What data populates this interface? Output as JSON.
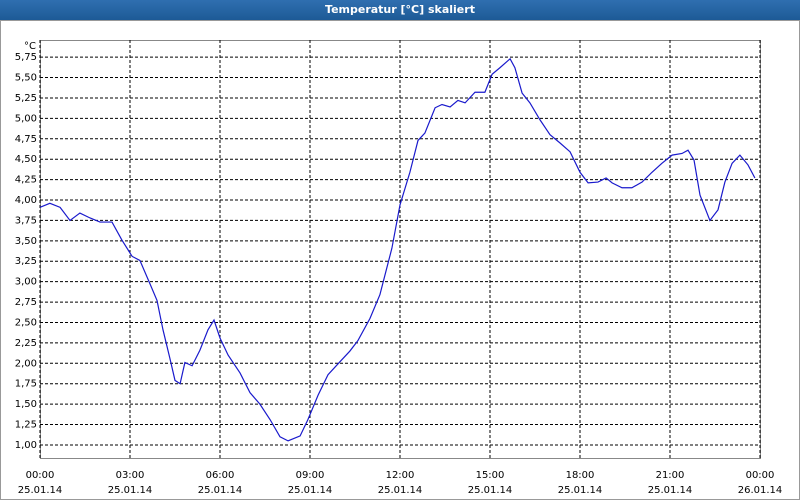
{
  "chart_data": {
    "type": "line",
    "title": "Temperatur [°C] skaliert",
    "y_unit": "°C",
    "xlim": [
      0,
      24
    ],
    "xticks": [
      {
        "value": 0,
        "label": "00:00"
      },
      {
        "value": 3,
        "label": "03:00"
      },
      {
        "value": 6,
        "label": "06:00"
      },
      {
        "value": 9,
        "label": "09:00"
      },
      {
        "value": 12,
        "label": "12:00"
      },
      {
        "value": 15,
        "label": "15:00"
      },
      {
        "value": 18,
        "label": "18:00"
      },
      {
        "value": 21,
        "label": "21:00"
      },
      {
        "value": 24,
        "label": "00:00"
      }
    ],
    "xtick_dates": [
      "25.01.14",
      "25.01.14",
      "25.01.14",
      "25.01.14",
      "25.01.14",
      "25.01.14",
      "25.01.14",
      "25.01.14",
      "26.01.14"
    ],
    "ylim": [
      0.84,
      5.96
    ],
    "yticks": [
      {
        "value": 1.0,
        "label": "1,00"
      },
      {
        "value": 1.25,
        "label": "1,25"
      },
      {
        "value": 1.5,
        "label": "1,50"
      },
      {
        "value": 1.75,
        "label": "1,75"
      },
      {
        "value": 2.0,
        "label": "2,00"
      },
      {
        "value": 2.25,
        "label": "2,25"
      },
      {
        "value": 2.5,
        "label": "2,50"
      },
      {
        "value": 2.75,
        "label": "2,75"
      },
      {
        "value": 3.0,
        "label": "3,00"
      },
      {
        "value": 3.25,
        "label": "3,25"
      },
      {
        "value": 3.5,
        "label": "3,50"
      },
      {
        "value": 3.75,
        "label": "3,75"
      },
      {
        "value": 4.0,
        "label": "4,00"
      },
      {
        "value": 4.25,
        "label": "4,25"
      },
      {
        "value": 4.5,
        "label": "4,50"
      },
      {
        "value": 4.75,
        "label": "4,75"
      },
      {
        "value": 5.0,
        "label": "5,00"
      },
      {
        "value": 5.25,
        "label": "5,25"
      },
      {
        "value": 5.5,
        "label": "5,50"
      },
      {
        "value": 5.75,
        "label": "5,75"
      }
    ],
    "grid": true,
    "color": "#1a1acc",
    "x": [
      0,
      0.33,
      0.67,
      1,
      1.33,
      1.67,
      2,
      2.4,
      2.73,
      3.07,
      3.33,
      3.67,
      3.9,
      4.1,
      4.33,
      4.5,
      4.67,
      4.83,
      5.07,
      5.33,
      5.6,
      5.8,
      6,
      6.27,
      6.67,
      7,
      7.33,
      7.67,
      8,
      8.27,
      8.67,
      8.93,
      9.27,
      9.6,
      10,
      10.33,
      10.6,
      11,
      11.33,
      11.73,
      12,
      12.33,
      12.6,
      12.83,
      13.17,
      13.4,
      13.67,
      13.93,
      14.17,
      14.5,
      14.83,
      15.07,
      15.33,
      15.67,
      15.83,
      16.07,
      16.33,
      16.67,
      17,
      17.33,
      17.67,
      18,
      18.27,
      18.6,
      18.87,
      19.07,
      19.4,
      19.73,
      20.07,
      20.4,
      20.73,
      21.07,
      21.4,
      21.6,
      21.8,
      22,
      22.33,
      22.6,
      22.83,
      23.07,
      23.33,
      23.6,
      23.83
    ],
    "values": [
      3.91,
      3.96,
      3.91,
      3.75,
      3.84,
      3.78,
      3.73,
      3.73,
      3.51,
      3.31,
      3.26,
      2.97,
      2.77,
      2.41,
      2.06,
      1.79,
      1.75,
      2.01,
      1.97,
      2.16,
      2.41,
      2.53,
      2.31,
      2.1,
      1.88,
      1.64,
      1.5,
      1.31,
      1.1,
      1.05,
      1.11,
      1.31,
      1.61,
      1.86,
      2.02,
      2.15,
      2.28,
      2.55,
      2.84,
      3.41,
      3.94,
      4.34,
      4.73,
      4.82,
      5.13,
      5.17,
      5.14,
      5.22,
      5.19,
      5.32,
      5.32,
      5.54,
      5.62,
      5.73,
      5.62,
      5.31,
      5.19,
      4.98,
      4.8,
      4.7,
      4.59,
      4.34,
      4.21,
      4.22,
      4.27,
      4.21,
      4.15,
      4.15,
      4.22,
      4.34,
      4.45,
      4.55,
      4.57,
      4.61,
      4.49,
      4.06,
      3.75,
      3.88,
      4.22,
      4.45,
      4.55,
      4.43,
      4.27
    ]
  }
}
